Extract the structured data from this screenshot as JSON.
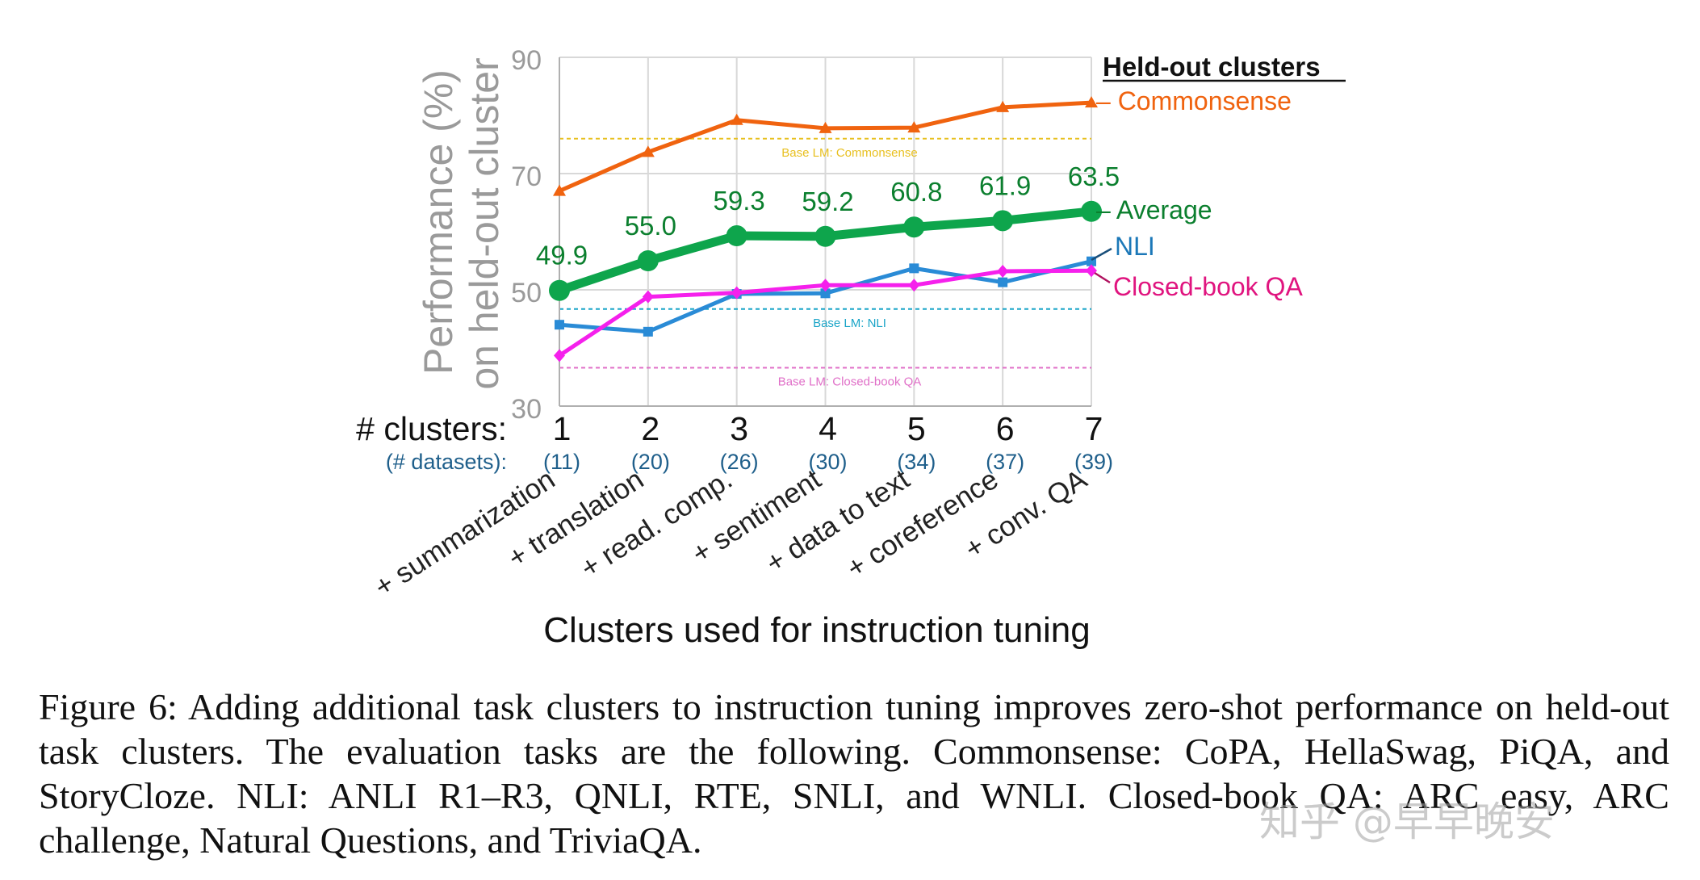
{
  "chart_data": {
    "type": "line",
    "ylabel_line1": "Performance (%)",
    "ylabel_line2": "on held-out cluster",
    "xlabel": "Clusters used for instruction tuning",
    "ylim": [
      30,
      90
    ],
    "yticks": [
      "30",
      "50",
      "70",
      "90"
    ],
    "x": [
      1,
      2,
      3,
      4,
      5,
      6,
      7
    ],
    "clusters_label": "# clusters:",
    "datasets_label": "(# datasets):",
    "cluster_ticks": [
      "1",
      "2",
      "3",
      "4",
      "5",
      "6",
      "7"
    ],
    "dataset_counts": [
      "(11)",
      "(20)",
      "(26)",
      "(30)",
      "(34)",
      "(37)",
      "(39)"
    ],
    "added_clusters": [
      "+ summarization",
      "+ translation",
      "+ read. comp.",
      "+ sentiment",
      "+ data to text",
      "+ coreference",
      "+ conv. QA"
    ],
    "legend_title": "Held-out clusters",
    "series": [
      {
        "name": "Commonsense",
        "legend_label": "– Commonsense",
        "color": "#f0630f",
        "marker": "triangle",
        "values": [
          67.0,
          73.7,
          79.2,
          77.8,
          77.9,
          81.4,
          82.2
        ]
      },
      {
        "name": "Average",
        "legend_label": "– Average",
        "color": "#0ea54c",
        "marker": "circle",
        "values": [
          49.9,
          55.0,
          59.3,
          59.2,
          60.8,
          61.9,
          63.5
        ],
        "data_labels": [
          "49.9",
          "55.0",
          "59.3",
          "59.2",
          "60.8",
          "61.9",
          "63.5"
        ]
      },
      {
        "name": "NLI",
        "legend_label": "NLI",
        "color": "#2a8bd6",
        "marker": "square",
        "values": [
          44.0,
          42.8,
          49.3,
          49.4,
          53.7,
          51.3,
          54.9
        ]
      },
      {
        "name": "Closed-book QA",
        "legend_label": "Closed-book QA",
        "color": "#f520ec",
        "marker": "diamond",
        "values": [
          38.7,
          48.8,
          49.5,
          50.8,
          50.8,
          53.2,
          53.3
        ]
      }
    ],
    "baselines": [
      {
        "label": "Base LM: Commonsense",
        "value": 76.0,
        "color": "#e8c020"
      },
      {
        "label": "Base LM: NLI",
        "value": 46.7,
        "color": "#1ba5c8"
      },
      {
        "label": "Base LM: Closed-book QA",
        "value": 36.6,
        "color": "#e070c8"
      }
    ],
    "grid": true
  },
  "colors": {
    "axis_gray": "#9a9a9a",
    "grid_gray": "#d8d8d8",
    "dataset_blue": "#1f5f8b",
    "nli_label": "#1c78b8",
    "closed_label": "#e0147f",
    "average_label": "#0b7f2e"
  },
  "caption": "Figure 6: Adding additional task clusters to instruction tuning improves zero-shot performance on held-out task clusters. The evaluation tasks are the following. Commonsense: CoPA, HellaSwag, PiQA, and StoryCloze. NLI: ANLI R1–R3, QNLI, RTE, SNLI, and WNLI. Closed-book QA: ARC easy, ARC challenge, Natural Questions, and TriviaQA.",
  "watermark": "知乎 @早早晚安"
}
